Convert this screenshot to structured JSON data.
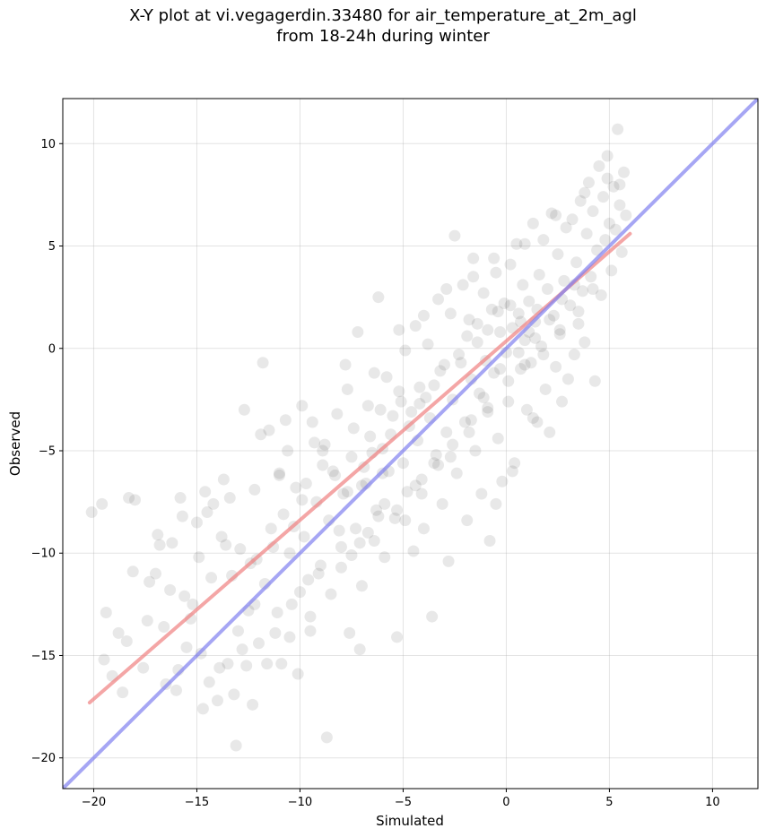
{
  "chart_data": {
    "type": "scatter",
    "title": "X-Y plot at vi.vegagerdin.33480 for air_temperature_at_2m_agl",
    "subtitle": "from 18-24h during winter",
    "xlabel": "Simulated",
    "ylabel": "Observed",
    "xlim": [
      -21.5,
      12.2
    ],
    "ylim": [
      -21.5,
      12.2
    ],
    "xticks": [
      -20,
      -15,
      -10,
      -5,
      0,
      5,
      10
    ],
    "yticks": [
      -20,
      -15,
      -10,
      -5,
      0,
      5,
      10
    ],
    "xtick_labels": [
      "−20",
      "−15",
      "−10",
      "−5",
      "0",
      "5",
      "10"
    ],
    "ytick_labels": [
      "−20",
      "−15",
      "−10",
      "−5",
      "0",
      "5",
      "10"
    ],
    "grid": true,
    "colors": {
      "points": "#000000",
      "fit_line": "#f08080",
      "identity_line": "#8080f0"
    },
    "series": [
      {
        "type": "scatter",
        "points": [
          [
            -20.1,
            -8.0
          ],
          [
            -19.6,
            -7.6
          ],
          [
            -19.4,
            -12.9
          ],
          [
            -19.5,
            -15.2
          ],
          [
            -19.1,
            -16.0
          ],
          [
            -18.8,
            -13.9
          ],
          [
            -18.6,
            -16.8
          ],
          [
            -18.4,
            -14.3
          ],
          [
            -18.3,
            -7.3
          ],
          [
            -18.0,
            -7.4
          ],
          [
            -17.6,
            -15.6
          ],
          [
            -17.3,
            -11.4
          ],
          [
            -17.0,
            -11.0
          ],
          [
            -16.9,
            -9.1
          ],
          [
            -16.6,
            -13.6
          ],
          [
            -16.5,
            -16.4
          ],
          [
            -16.2,
            -9.5
          ],
          [
            -16.0,
            -16.7
          ],
          [
            -15.8,
            -7.3
          ],
          [
            -15.6,
            -12.1
          ],
          [
            -15.5,
            -14.6
          ],
          [
            -15.3,
            -13.2
          ],
          [
            -15.0,
            -8.5
          ],
          [
            -14.9,
            -10.2
          ],
          [
            -14.7,
            -17.6
          ],
          [
            -14.6,
            -7.0
          ],
          [
            -14.4,
            -16.3
          ],
          [
            -14.2,
            -7.6
          ],
          [
            -14.0,
            -17.2
          ],
          [
            -13.8,
            -9.2
          ],
          [
            -13.7,
            -6.4
          ],
          [
            -13.5,
            -15.4
          ],
          [
            -13.3,
            -11.1
          ],
          [
            -13.2,
            -16.9
          ],
          [
            -13.1,
            -19.4
          ],
          [
            -12.9,
            -9.8
          ],
          [
            -12.7,
            -3.0
          ],
          [
            -12.6,
            -15.5
          ],
          [
            -12.5,
            -12.8
          ],
          [
            -12.3,
            -17.4
          ],
          [
            -12.1,
            -10.3
          ],
          [
            -12.0,
            -14.4
          ],
          [
            -11.8,
            -0.7
          ],
          [
            -11.7,
            -11.5
          ],
          [
            -11.5,
            -4.0
          ],
          [
            -11.4,
            -8.8
          ],
          [
            -11.2,
            -13.9
          ],
          [
            -11.0,
            -6.2
          ],
          [
            -10.9,
            -15.4
          ],
          [
            -10.7,
            -3.5
          ],
          [
            -10.5,
            -10.0
          ],
          [
            -10.4,
            -12.5
          ],
          [
            -10.2,
            -6.8
          ],
          [
            -10.1,
            -15.9
          ],
          [
            -9.9,
            -2.8
          ],
          [
            -9.8,
            -9.2
          ],
          [
            -9.6,
            -11.3
          ],
          [
            -9.5,
            -13.1
          ],
          [
            -9.3,
            -4.6
          ],
          [
            -9.2,
            -7.5
          ],
          [
            -9.0,
            -10.6
          ],
          [
            -8.9,
            -5.7
          ],
          [
            -8.7,
            -19.0
          ],
          [
            -8.6,
            -8.4
          ],
          [
            -8.5,
            -12.0
          ],
          [
            -8.4,
            -6.0
          ],
          [
            -8.2,
            -3.2
          ],
          [
            -8.0,
            -9.7
          ],
          [
            -7.9,
            -7.1
          ],
          [
            -7.8,
            -0.8
          ],
          [
            -7.6,
            -13.9
          ],
          [
            -7.5,
            -5.3
          ],
          [
            -7.3,
            -8.8
          ],
          [
            -7.2,
            0.8
          ],
          [
            -7.1,
            -14.7
          ],
          [
            -7.0,
            -11.6
          ],
          [
            -6.8,
            -6.6
          ],
          [
            -6.7,
            -2.8
          ],
          [
            -6.6,
            -4.3
          ],
          [
            -6.4,
            -9.4
          ],
          [
            -6.3,
            -7.9
          ],
          [
            -6.2,
            2.5
          ],
          [
            -6.0,
            -4.9
          ],
          [
            -5.9,
            -10.2
          ],
          [
            -5.8,
            -1.4
          ],
          [
            -5.7,
            -6.0
          ],
          [
            -5.5,
            -3.3
          ],
          [
            -5.4,
            -8.3
          ],
          [
            -5.3,
            -14.1
          ],
          [
            -5.2,
            -2.1
          ],
          [
            -5.0,
            -5.6
          ],
          [
            -4.9,
            -0.1
          ],
          [
            -4.8,
            -7.0
          ],
          [
            -4.7,
            -3.8
          ],
          [
            -4.5,
            -9.9
          ],
          [
            -4.4,
            1.1
          ],
          [
            -4.3,
            -4.5
          ],
          [
            -4.2,
            -2.7
          ],
          [
            -4.1,
            -6.4
          ],
          [
            -4.0,
            -8.8
          ],
          [
            -3.8,
            0.2
          ],
          [
            -3.7,
            -3.4
          ],
          [
            -3.6,
            -13.1
          ],
          [
            -3.5,
            -1.8
          ],
          [
            -3.4,
            -5.2
          ],
          [
            -3.3,
            2.4
          ],
          [
            -3.1,
            -7.6
          ],
          [
            -3.0,
            -0.8
          ],
          [
            -2.9,
            -4.1
          ],
          [
            -2.8,
            -10.4
          ],
          [
            -2.7,
            1.7
          ],
          [
            -2.6,
            -2.5
          ],
          [
            -2.5,
            5.5
          ],
          [
            -2.4,
            -6.1
          ],
          [
            -2.3,
            -0.3
          ],
          [
            -2.1,
            3.1
          ],
          [
            -2.0,
            -3.6
          ],
          [
            -1.9,
            -8.4
          ],
          [
            -1.8,
            1.4
          ],
          [
            -1.7,
            -1.5
          ],
          [
            -1.6,
            4.4
          ],
          [
            -1.5,
            -5.0
          ],
          [
            -1.4,
            0.3
          ],
          [
            -1.3,
            -2.2
          ],
          [
            -1.2,
            -7.1
          ],
          [
            -1.1,
            2.7
          ],
          [
            -1.0,
            -0.6
          ],
          [
            -0.9,
            -3.1
          ],
          [
            -0.8,
            -9.4
          ],
          [
            -0.7,
            1.9
          ],
          [
            -0.6,
            -1.2
          ],
          [
            -0.5,
            3.7
          ],
          [
            -0.4,
            -4.4
          ],
          [
            -0.3,
            0.8
          ],
          [
            -0.2,
            -6.5
          ],
          [
            -0.1,
            2.2
          ],
          [
            0.0,
            -0.2
          ],
          [
            0.1,
            -2.6
          ],
          [
            0.2,
            4.1
          ],
          [
            0.3,
            1.0
          ],
          [
            0.4,
            -5.6
          ],
          [
            0.5,
            5.1
          ],
          [
            0.6,
            1.7
          ],
          [
            0.7,
            -1.0
          ],
          [
            0.8,
            3.1
          ],
          [
            0.9,
            0.4
          ],
          [
            1.0,
            -3.0
          ],
          [
            1.1,
            2.3
          ],
          [
            1.2,
            -0.7
          ],
          [
            1.3,
            6.1
          ],
          [
            1.4,
            1.3
          ],
          [
            1.5,
            -3.6
          ],
          [
            1.6,
            3.6
          ],
          [
            1.7,
            0.1
          ],
          [
            1.8,
            5.3
          ],
          [
            1.9,
            -2.0
          ],
          [
            2.0,
            2.9
          ],
          [
            2.1,
            -4.1
          ],
          [
            2.2,
            6.6
          ],
          [
            2.3,
            1.6
          ],
          [
            2.4,
            -0.9
          ],
          [
            2.5,
            4.6
          ],
          [
            2.6,
            0.7
          ],
          [
            2.7,
            -2.6
          ],
          [
            2.8,
            3.3
          ],
          [
            2.9,
            5.9
          ],
          [
            3.0,
            -1.5
          ],
          [
            3.1,
            2.1
          ],
          [
            3.2,
            6.3
          ],
          [
            3.3,
            -0.3
          ],
          [
            3.4,
            4.2
          ],
          [
            3.5,
            1.2
          ],
          [
            3.6,
            7.2
          ],
          [
            3.7,
            2.8
          ],
          [
            3.8,
            0.3
          ],
          [
            3.9,
            5.6
          ],
          [
            4.0,
            8.1
          ],
          [
            4.1,
            3.5
          ],
          [
            4.2,
            6.7
          ],
          [
            4.3,
            -1.6
          ],
          [
            4.4,
            4.8
          ],
          [
            4.5,
            8.9
          ],
          [
            4.6,
            2.6
          ],
          [
            4.7,
            7.4
          ],
          [
            4.8,
            5.3
          ],
          [
            4.9,
            9.4
          ],
          [
            5.0,
            6.1
          ],
          [
            5.1,
            3.8
          ],
          [
            5.2,
            7.9
          ],
          [
            5.3,
            5.8
          ],
          [
            5.4,
            10.7
          ],
          [
            5.5,
            7.0
          ],
          [
            5.6,
            4.7
          ],
          [
            5.7,
            8.6
          ],
          [
            5.8,
            6.5
          ],
          [
            -11.9,
            -4.2
          ],
          [
            -10.6,
            -5.0
          ],
          [
            -9.4,
            -3.6
          ],
          [
            -8.8,
            -4.7
          ],
          [
            -7.4,
            -3.9
          ],
          [
            -6.9,
            -5.8
          ],
          [
            -6.1,
            -3.0
          ],
          [
            -5.6,
            -4.2
          ],
          [
            -5.1,
            -2.6
          ],
          [
            -4.6,
            -3.1
          ],
          [
            -4.2,
            -1.9
          ],
          [
            -3.9,
            -2.4
          ],
          [
            -3.2,
            -1.1
          ],
          [
            -2.2,
            -0.7
          ],
          [
            -1.9,
            0.6
          ],
          [
            -1.4,
            1.2
          ],
          [
            -0.9,
            0.9
          ],
          [
            -0.4,
            1.8
          ],
          [
            0.2,
            2.1
          ],
          [
            0.7,
            1.3
          ],
          [
            1.1,
            0.8
          ],
          [
            1.5,
            1.9
          ],
          [
            -8.3,
            -6.2
          ],
          [
            -7.7,
            -7.0
          ],
          [
            -7.0,
            -6.7
          ],
          [
            -6.5,
            -5.1
          ],
          [
            -6.0,
            -6.1
          ],
          [
            -9.7,
            -6.6
          ],
          [
            -10.3,
            -8.7
          ],
          [
            -11.3,
            -9.7
          ],
          [
            -12.4,
            -10.5
          ],
          [
            -13.6,
            -9.6
          ],
          [
            -14.3,
            -11.2
          ],
          [
            -15.2,
            -12.5
          ],
          [
            -16.3,
            -11.8
          ],
          [
            -17.4,
            -13.3
          ],
          [
            -10.8,
            -8.1
          ],
          [
            -9.9,
            -7.4
          ],
          [
            -8.1,
            -8.9
          ],
          [
            -7.5,
            -10.1
          ],
          [
            -6.7,
            -9.0
          ],
          [
            -5.9,
            -7.6
          ],
          [
            -4.9,
            -8.4
          ],
          [
            -4.1,
            -7.1
          ],
          [
            -3.3,
            -5.7
          ],
          [
            -2.6,
            -4.7
          ],
          [
            -1.7,
            -3.5
          ],
          [
            -1.1,
            -2.4
          ],
          [
            -0.3,
            -1.0
          ],
          [
            0.6,
            -0.2
          ],
          [
            1.4,
            0.5
          ],
          [
            2.1,
            1.4
          ],
          [
            2.7,
            2.4
          ],
          [
            3.3,
            3.1
          ],
          [
            -13.0,
            -13.8
          ],
          [
            -12.2,
            -12.5
          ],
          [
            -11.1,
            -12.9
          ],
          [
            -10.0,
            -11.9
          ],
          [
            -9.1,
            -11.0
          ],
          [
            -8.0,
            -10.7
          ],
          [
            -7.1,
            -9.5
          ],
          [
            -6.2,
            -8.2
          ],
          [
            -5.3,
            -7.9
          ],
          [
            -4.4,
            -6.7
          ],
          [
            -3.5,
            -5.6
          ],
          [
            -2.7,
            -5.3
          ],
          [
            -1.8,
            -4.1
          ],
          [
            -0.9,
            -2.9
          ],
          [
            0.1,
            -1.6
          ],
          [
            0.9,
            -0.8
          ],
          [
            1.8,
            -0.3
          ],
          [
            2.6,
            0.9
          ],
          [
            3.5,
            1.8
          ],
          [
            4.2,
            2.9
          ],
          [
            -15.9,
            -15.7
          ],
          [
            -14.8,
            -14.9
          ],
          [
            -13.9,
            -15.6
          ],
          [
            -12.8,
            -14.7
          ],
          [
            -11.6,
            -15.4
          ],
          [
            -10.5,
            -14.1
          ],
          [
            -9.5,
            -13.8
          ],
          [
            -0.5,
            -7.6
          ],
          [
            0.3,
            -6.0
          ],
          [
            1.3,
            -3.4
          ],
          [
            -18.1,
            -10.9
          ],
          [
            -16.8,
            -9.6
          ],
          [
            -15.7,
            -8.2
          ],
          [
            -14.5,
            -8.0
          ],
          [
            -13.4,
            -7.3
          ],
          [
            -12.2,
            -6.9
          ],
          [
            -11.0,
            -6.1
          ],
          [
            -8.9,
            -5.0
          ],
          [
            -7.7,
            -2.0
          ],
          [
            -6.4,
            -1.2
          ],
          [
            -5.2,
            0.9
          ],
          [
            -4.0,
            1.6
          ],
          [
            -2.9,
            2.9
          ],
          [
            -1.6,
            3.5
          ],
          [
            -0.6,
            4.4
          ],
          [
            0.9,
            5.1
          ],
          [
            2.4,
            6.5
          ],
          [
            3.8,
            7.6
          ],
          [
            4.9,
            8.3
          ],
          [
            5.5,
            8.0
          ]
        ]
      },
      {
        "type": "line",
        "points": [
          [
            -20.2,
            -17.3
          ],
          [
            6.0,
            5.6
          ]
        ]
      },
      {
        "type": "line",
        "points": [
          [
            -21.5,
            -21.5
          ],
          [
            12.2,
            12.2
          ]
        ]
      }
    ]
  }
}
